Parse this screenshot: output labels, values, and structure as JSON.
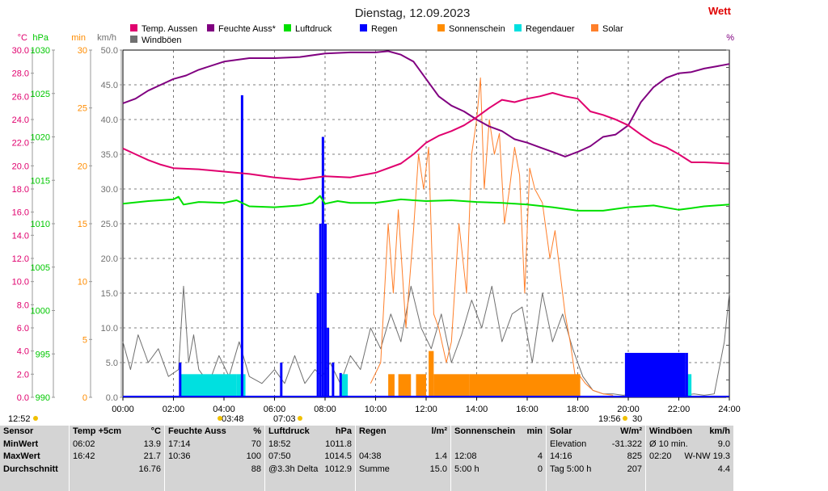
{
  "chart_data": {
    "type": "line",
    "title": "Dienstag, 12.09.2023",
    "brand_text": "Wett",
    "x_ticks": [
      "00:00",
      "02:00",
      "04:00",
      "06:00",
      "08:00",
      "10:00",
      "12:00",
      "14:00",
      "16:00",
      "18:00",
      "20:00",
      "22:00",
      "24:00"
    ],
    "xlim_hours": [
      0,
      24
    ],
    "axes": [
      {
        "unit": "°C",
        "min": 0,
        "max": 30,
        "step": 2,
        "decimals": 1,
        "color": "#e0006e"
      },
      {
        "unit": "hPa",
        "min": 990,
        "max": 1030,
        "step": 5,
        "decimals": 0,
        "color": "#00c800"
      },
      {
        "unit": "min",
        "min": 0,
        "max": 30,
        "step": 5,
        "decimals": 0,
        "color": "#ff8c00"
      },
      {
        "unit": "km/h",
        "min": 0,
        "max": 50,
        "step": 5,
        "decimals": 1,
        "color": "#707070"
      }
    ],
    "right_axis_unit": "%",
    "legend": [
      {
        "name": "Temp. Aussen",
        "color": "#e0006e"
      },
      {
        "name": "Feuchte Auss*",
        "color": "#800080"
      },
      {
        "name": "Luftdruck",
        "color": "#00e000"
      },
      {
        "name": "Regen",
        "color": "#0000ff"
      },
      {
        "name": "Sonnenschein",
        "color": "#ff8c00"
      },
      {
        "name": "Regendauer",
        "color": "#00e0e0"
      },
      {
        "name": "Solar",
        "color": "#ff7f2a"
      },
      {
        "name": "Windböen",
        "color": "#707070"
      }
    ],
    "series": [
      {
        "name": "Temp. Aussen",
        "axis": "°C",
        "color": "#e0006e",
        "x": [
          0,
          0.5,
          1,
          1.5,
          2,
          3,
          4,
          5,
          6,
          7,
          8,
          9,
          10,
          11,
          11.5,
          12,
          12.5,
          13,
          13.5,
          14,
          14.5,
          15,
          15.5,
          16,
          16.5,
          17,
          17.5,
          18,
          18.5,
          19,
          19.5,
          20,
          20.5,
          21,
          21.5,
          22,
          22.5,
          23,
          24
        ],
        "y": [
          21.5,
          21.0,
          20.5,
          20.1,
          19.8,
          19.7,
          19.5,
          19.3,
          19.0,
          18.8,
          19.1,
          19.0,
          19.4,
          20.2,
          21.0,
          22.0,
          22.6,
          23.0,
          23.5,
          24.2,
          25.0,
          25.7,
          25.5,
          25.8,
          26.0,
          26.3,
          26.0,
          25.8,
          24.7,
          24.4,
          24.0,
          23.5,
          22.7,
          22.0,
          21.6,
          21.0,
          20.3,
          20.3,
          20.2
        ]
      },
      {
        "name": "Feuchte Auss*",
        "axis": "°C",
        "color": "#800080",
        "x": [
          0,
          0.5,
          1,
          1.5,
          2,
          2.5,
          3,
          4,
          5,
          6,
          7,
          8,
          9,
          10,
          10.5,
          11,
          11.5,
          12,
          12.5,
          13,
          13.5,
          14,
          14.5,
          15,
          15.5,
          16,
          16.5,
          17,
          17.5,
          18,
          18.5,
          19,
          19.5,
          20,
          20.5,
          21,
          21.5,
          22,
          22.5,
          23,
          23.5,
          24
        ],
        "y": [
          25.4,
          25.8,
          26.5,
          27.0,
          27.5,
          27.8,
          28.3,
          29.0,
          29.3,
          29.3,
          29.4,
          29.7,
          29.8,
          29.8,
          29.9,
          29.6,
          29.0,
          27.5,
          26.0,
          25.2,
          24.7,
          24.0,
          23.4,
          23.0,
          22.3,
          22.0,
          21.6,
          21.2,
          20.8,
          21.2,
          21.7,
          22.5,
          22.7,
          23.5,
          25.5,
          26.8,
          27.6,
          28.0,
          28.1,
          28.4,
          28.6,
          28.8
        ]
      },
      {
        "name": "Luftdruck",
        "axis": "hPa",
        "color": "#00e000",
        "x": [
          0,
          1,
          2,
          2.2,
          2.4,
          3,
          4,
          4.5,
          5,
          6,
          7,
          7.5,
          7.8,
          8,
          8.5,
          9,
          10,
          11,
          12,
          13,
          14,
          15,
          16,
          17,
          18,
          19,
          20,
          21,
          22,
          22.5,
          23,
          24
        ],
        "y": [
          1012.3,
          1012.6,
          1012.8,
          1013.1,
          1012.2,
          1012.5,
          1012.4,
          1012.7,
          1012.0,
          1011.9,
          1012.1,
          1012.4,
          1013.2,
          1012.3,
          1012.6,
          1012.4,
          1012.4,
          1012.8,
          1012.6,
          1012.7,
          1012.5,
          1012.4,
          1012.2,
          1011.9,
          1011.5,
          1011.5,
          1011.9,
          1012.1,
          1011.6,
          1011.8,
          1012.0,
          1012.2
        ]
      },
      {
        "name": "Regen",
        "axis": "km/h",
        "color": "#0000ff",
        "x": [
          2.2,
          2.25,
          4.6,
          4.7,
          6.2,
          6.25,
          7.6,
          7.7,
          7.8,
          7.9,
          8.0,
          8.1,
          8.3,
          8.6,
          19.85,
          19.9,
          22.3,
          22.35
        ],
        "y": [
          0,
          5,
          0,
          43.5,
          0,
          5,
          0,
          15,
          25,
          37.5,
          25,
          10,
          5,
          3.5,
          0,
          6.4,
          6.4,
          0
        ]
      },
      {
        "name": "Sonnenschein",
        "axis": "min",
        "color": "#ff8c00",
        "x": [
          10.5,
          10.75,
          10.9,
          11.4,
          11.6,
          12.0,
          12.1,
          12.3,
          13.7,
          18.1
        ],
        "y": [
          2,
          0,
          2,
          0,
          2,
          0,
          4,
          2,
          2,
          0
        ]
      },
      {
        "name": "Regendauer",
        "axis": "min",
        "color": "#00e0e0",
        "x": [
          2.25,
          4.5,
          4.85,
          8.6,
          8.9,
          22.3,
          22.5
        ],
        "y": [
          2,
          2,
          0,
          2,
          0,
          2,
          0
        ]
      },
      {
        "name": "Solar",
        "axis": "km/h",
        "color": "#ff7f2a",
        "x": [
          9.8,
          10.2,
          10.5,
          10.7,
          10.9,
          11.2,
          11.5,
          11.7,
          11.9,
          12.1,
          12.3,
          12.5,
          12.8,
          13.0,
          13.3,
          13.6,
          13.8,
          14.0,
          14.15,
          14.3,
          14.5,
          14.7,
          14.9,
          15.1,
          15.3,
          15.5,
          15.7,
          15.9,
          16.1,
          16.3,
          16.6,
          16.9,
          17.1,
          17.3,
          17.5,
          17.7,
          17.9,
          18.1,
          18.3,
          18.6,
          19.0,
          19.4
        ],
        "y": [
          2,
          5,
          25,
          15,
          27,
          10,
          24,
          35,
          30,
          36,
          12,
          10,
          5,
          8,
          25,
          15,
          35,
          40,
          46,
          30,
          40,
          35,
          38,
          25,
          30,
          36,
          32,
          15,
          33,
          30,
          28,
          20,
          24,
          18,
          12,
          8,
          3,
          3,
          2,
          1,
          0.5,
          0.3
        ]
      },
      {
        "name": "Windböen",
        "axis": "km/h",
        "color": "#707070",
        "x": [
          0,
          0.3,
          0.6,
          1,
          1.4,
          1.8,
          2.2,
          2.4,
          2.6,
          2.8,
          3.0,
          3.4,
          3.8,
          4.2,
          4.6,
          5,
          5.5,
          6,
          6.4,
          6.8,
          7.2,
          7.6,
          7.9,
          8.2,
          8.6,
          9.0,
          9.4,
          9.8,
          10.2,
          10.6,
          11.0,
          11.4,
          11.8,
          12.2,
          12.6,
          13.0,
          13.4,
          13.8,
          14.2,
          14.6,
          15.0,
          15.4,
          15.8,
          16.2,
          16.6,
          17.0,
          17.4,
          17.8,
          18.2,
          18.6,
          19.0,
          19.4,
          19.8,
          20.2,
          20.6,
          21.0,
          21.4,
          21.8,
          22.2,
          22.6,
          23.0,
          23.4,
          23.8,
          24
        ],
        "y": [
          8,
          4,
          9,
          5,
          7,
          3,
          4,
          16,
          5,
          9,
          4,
          2,
          6,
          3,
          8,
          3,
          2,
          4,
          2,
          6,
          2,
          4,
          3,
          5,
          2,
          6,
          4,
          10,
          7,
          12,
          8,
          16,
          10,
          7,
          12,
          5,
          9,
          14,
          10,
          16,
          8,
          12,
          13,
          5,
          15,
          8,
          12,
          7,
          3,
          1,
          0.5,
          0.5,
          0.3,
          0.5,
          0.3,
          0.5,
          0.3,
          0.5,
          0.3,
          0.5,
          0.3,
          0.5,
          8,
          15
        ]
      }
    ],
    "bottom_markers": {
      "left": "12:52",
      "sunrise": "03:48",
      "sunrise2": "07:03",
      "sunset": "19:56",
      "sunset_n": "30"
    }
  },
  "summary": {
    "columns": [
      {
        "h1": "Sensor",
        "h2": "",
        "rows": [
          [
            "MinWert",
            ""
          ],
          [
            "MaxWert",
            ""
          ],
          [
            "Durchschnitt",
            ""
          ]
        ]
      },
      {
        "h1": "Temp +5cm",
        "h2": "°C",
        "rows": [
          [
            "06:02",
            "13.9"
          ],
          [
            "16:42",
            "21.7"
          ],
          [
            "",
            "16.76"
          ]
        ]
      },
      {
        "h1": "Feuchte Auss",
        "h2": "%",
        "rows": [
          [
            "17:14",
            "70"
          ],
          [
            "10:36",
            "100"
          ],
          [
            "",
            "88"
          ]
        ]
      },
      {
        "h1": "Luftdruck",
        "h2": "hPa",
        "rows": [
          [
            "18:52",
            "1011.8"
          ],
          [
            "07:50",
            "1014.5"
          ],
          [
            "@3.3h Delta",
            "1012.9"
          ]
        ]
      },
      {
        "h1": "Regen",
        "h2": "l/m²",
        "rows": [
          [
            "",
            ""
          ],
          [
            "04:38",
            "1.4"
          ],
          [
            "Summe",
            "15.0"
          ]
        ]
      },
      {
        "h1": "Sonnenschein",
        "h2": "min",
        "rows": [
          [
            "",
            ""
          ],
          [
            "12:08",
            "4"
          ],
          [
            "5:00 h",
            "0"
          ]
        ]
      },
      {
        "h1": "Solar",
        "h2": "W/m²",
        "rows": [
          [
            "Elevation",
            "-31.322"
          ],
          [
            "14:16",
            "825"
          ],
          [
            "Tag 5:00 h",
            "207"
          ]
        ]
      },
      {
        "h1": "Windböen",
        "h2": "km/h",
        "rows": [
          [
            "Ø 10 min.",
            "9.0"
          ],
          [
            "02:20",
            "W-NW 19.3"
          ],
          [
            "",
            "4.4"
          ]
        ]
      }
    ]
  }
}
